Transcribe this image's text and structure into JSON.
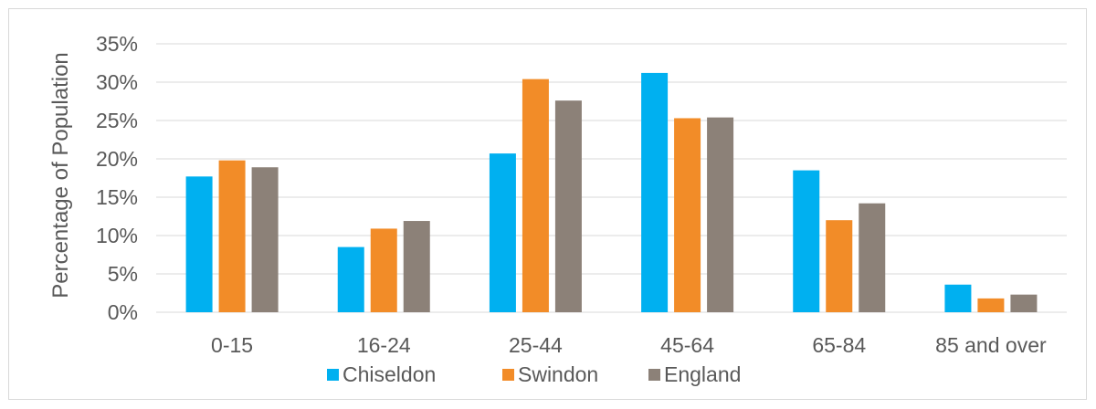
{
  "chart_data": {
    "type": "bar",
    "title": "",
    "xlabel": "",
    "ylabel": "Percentage of Population",
    "ylim": [
      0,
      35
    ],
    "ytick_step": 5,
    "ytick_suffix": "%",
    "grid": true,
    "legend_position": "bottom",
    "categories": [
      "0-15",
      "16-24",
      "25-44",
      "45-64",
      "65-84",
      "85 and over"
    ],
    "series": [
      {
        "name": "Chiseldon",
        "color": "#00b0f0",
        "values": [
          17.7,
          8.5,
          20.7,
          31.2,
          18.5,
          3.6
        ]
      },
      {
        "name": "Swindon",
        "color": "#f28c28",
        "values": [
          19.8,
          10.9,
          30.4,
          25.3,
          12.0,
          1.8
        ]
      },
      {
        "name": "England",
        "color": "#8c8178",
        "values": [
          18.9,
          11.9,
          27.6,
          25.4,
          14.2,
          2.3
        ]
      }
    ]
  }
}
